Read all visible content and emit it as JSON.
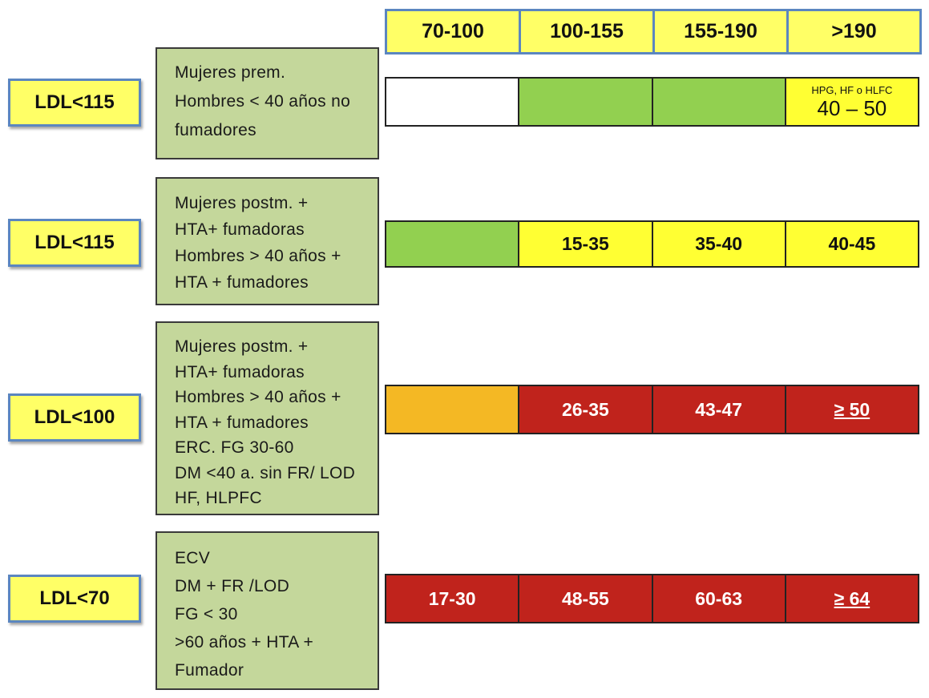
{
  "headers": [
    "70-100",
    "100-155",
    "155-190",
    ">190"
  ],
  "rows": [
    {
      "target": "LDL<115",
      "description": [
        "Mujeres prem.",
        "Hombres < 40 años no",
        "fumadores"
      ],
      "cells": [
        {
          "color": "#ffffff",
          "text": ""
        },
        {
          "color": "#92d050",
          "text": ""
        },
        {
          "color": "#92d050",
          "text": ""
        },
        {
          "color": "#ffff33",
          "note": "HPG, HF o HLFC",
          "text": "40 – 50"
        }
      ]
    },
    {
      "target": "LDL<115",
      "description": [
        "Mujeres postm. +",
        "HTA+ fumadoras",
        "Hombres > 40 años +",
        "HTA + fumadores"
      ],
      "cells": [
        {
          "color": "#92d050",
          "text": ""
        },
        {
          "color": "#ffff33",
          "text": "15-35"
        },
        {
          "color": "#ffff33",
          "text": "35-40"
        },
        {
          "color": "#ffff33",
          "text": "40-45"
        }
      ]
    },
    {
      "target": "LDL<100",
      "description": [
        "Mujeres postm. +",
        "HTA+ fumadoras",
        "Hombres > 40 años +",
        "HTA + fumadores",
        "ERC. FG 30-60",
        "DM <40 a. sin FR/ LOD",
        "HF, HLPFC"
      ],
      "cells": [
        {
          "color": "#f4b824",
          "text": ""
        },
        {
          "color": "#c0231c",
          "text": "26-35"
        },
        {
          "color": "#c0231c",
          "text": "43-47"
        },
        {
          "color": "#c0231c",
          "text": "≥ 50"
        }
      ]
    },
    {
      "target": "LDL<70",
      "description": [
        "ECV",
        "DM + FR /LOD",
        "FG < 30",
        ">60 años + HTA +",
        "Fumador"
      ],
      "cells": [
        {
          "color": "#c0231c",
          "text": "17-30"
        },
        {
          "color": "#c0231c",
          "text": "48-55"
        },
        {
          "color": "#c0231c",
          "text": "60-63"
        },
        {
          "color": "#c0231c",
          "text": "≥ 64"
        }
      ]
    }
  ]
}
